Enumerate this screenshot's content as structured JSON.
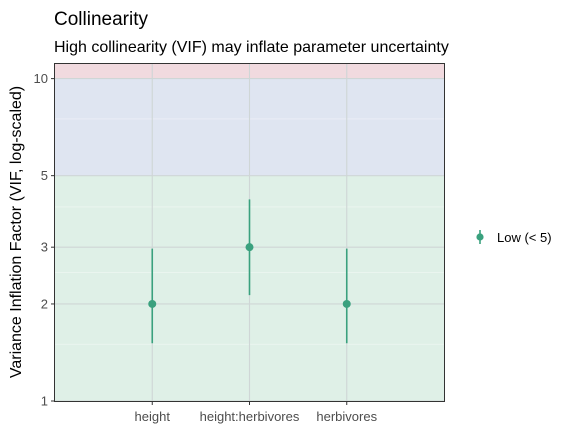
{
  "chart_data": {
    "type": "scatter",
    "title": "Collinearity",
    "subtitle": "High collinearity (VIF) may inflate parameter uncertainty",
    "xlabel": "",
    "ylabel": "Variance Inflation Factor (VIF, log-scaled)",
    "categories": [
      "height",
      "height:herbivores",
      "herbivores"
    ],
    "series": [
      {
        "name": "Low (< 5)",
        "color": "#3aa17e",
        "values": [
          2.0,
          3.0,
          2.0
        ],
        "ci_low": [
          1.51,
          2.13,
          1.51
        ],
        "ci_high": [
          2.97,
          4.22,
          2.97
        ]
      }
    ],
    "y_scale": "log",
    "ylim": [
      1,
      11.1
    ],
    "y_ticks": [
      1,
      2,
      3,
      5,
      10
    ],
    "y_tick_labels": [
      "1",
      "2",
      "3",
      "5",
      "10"
    ],
    "y_minor_gridlines": [
      1.5,
      2.5,
      4,
      7.5
    ],
    "background_bands": [
      {
        "from": 1,
        "to": 5,
        "color": "#dff0e7"
      },
      {
        "from": 5,
        "to": 10,
        "color": "#dfe5f1"
      },
      {
        "from": 10,
        "to": 11.1,
        "color": "#f1dadf"
      }
    ],
    "grid": true,
    "legend": "right"
  }
}
